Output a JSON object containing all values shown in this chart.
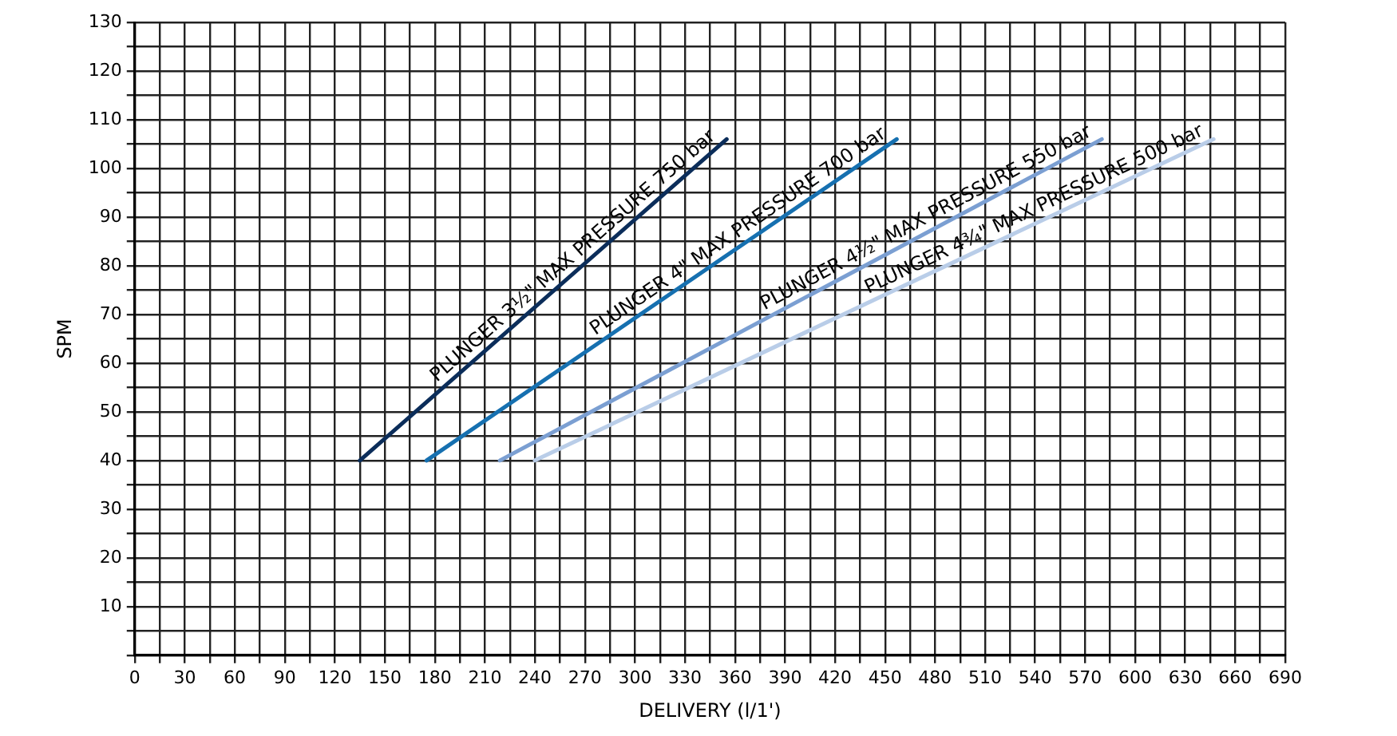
{
  "chart_data": {
    "type": "line",
    "xlabel": "DELIVERY (l/1')",
    "ylabel": "SPM",
    "series": [
      {
        "name": "PLUNGER 3½\" MAX PRESSURE 750 bar",
        "color": "#0b2d5a",
        "x": [
          135,
          355
        ],
        "values": [
          40,
          106
        ]
      },
      {
        "name": "PLUNGER 4\" MAX PRESSURE 700 bar",
        "color": "#1670b0",
        "x": [
          175,
          457
        ],
        "values": [
          40,
          106
        ]
      },
      {
        "name": "PLUNGER 4½\" MAX PRESSURE 550 bar",
        "color": "#7b9fd2",
        "x": [
          219,
          580
        ],
        "values": [
          40,
          106
        ]
      },
      {
        "name": "PLUNGER 4¾\" MAX PRESSURE 500 bar",
        "color": "#b9cde8",
        "x": [
          240,
          647
        ],
        "values": [
          40,
          106
        ]
      }
    ],
    "xlim": [
      0,
      690
    ],
    "ylim": [
      0,
      130
    ],
    "xticks": [
      0,
      {
        "value": 15,
        "label": null
      },
      30,
      {
        "value": 45,
        "label": null
      },
      60,
      {
        "value": 75,
        "label": null
      },
      90,
      {
        "value": 105,
        "label": null
      },
      120,
      {
        "value": 135,
        "label": null
      },
      150,
      {
        "value": 165,
        "label": null
      },
      180,
      {
        "value": 195,
        "label": null
      },
      210,
      {
        "value": 225,
        "label": null
      },
      240,
      {
        "value": 255,
        "label": null
      },
      270,
      {
        "value": 285,
        "label": null
      },
      300,
      {
        "value": 315,
        "label": null
      },
      330,
      {
        "value": 345,
        "label": null
      },
      360,
      {
        "value": 375,
        "label": null
      },
      390,
      {
        "value": 405,
        "label": null
      },
      420,
      {
        "value": 435,
        "label": null
      },
      450,
      {
        "value": 465,
        "label": null
      },
      480,
      {
        "value": 495,
        "label": null
      },
      510,
      {
        "value": 525,
        "label": null
      },
      540,
      {
        "value": 555,
        "label": null
      },
      570,
      {
        "value": 585,
        "label": null
      },
      600,
      {
        "value": 615,
        "label": null
      },
      630,
      {
        "value": 645,
        "label": null
      },
      660,
      {
        "value": 675,
        "label": null
      },
      690
    ],
    "yticks": [
      {
        "value": 0,
        "label": null
      },
      {
        "value": 5,
        "label": null
      },
      10,
      {
        "value": 15,
        "label": null
      },
      20,
      {
        "value": 25,
        "label": null
      },
      30,
      {
        "value": 35,
        "label": null
      },
      40,
      {
        "value": 45,
        "label": null
      },
      50,
      {
        "value": 55,
        "label": null
      },
      60,
      {
        "value": 65,
        "label": null
      },
      70,
      {
        "value": 75,
        "label": null
      },
      80,
      {
        "value": 85,
        "label": null
      },
      90,
      {
        "value": 95,
        "label": null
      },
      100,
      {
        "value": 105,
        "label": null
      },
      110,
      {
        "value": 115,
        "label": null
      },
      120,
      {
        "value": 125,
        "label": null
      },
      130
    ],
    "grid": true,
    "legend": false,
    "marker": "none",
    "line_style": "solid"
  }
}
